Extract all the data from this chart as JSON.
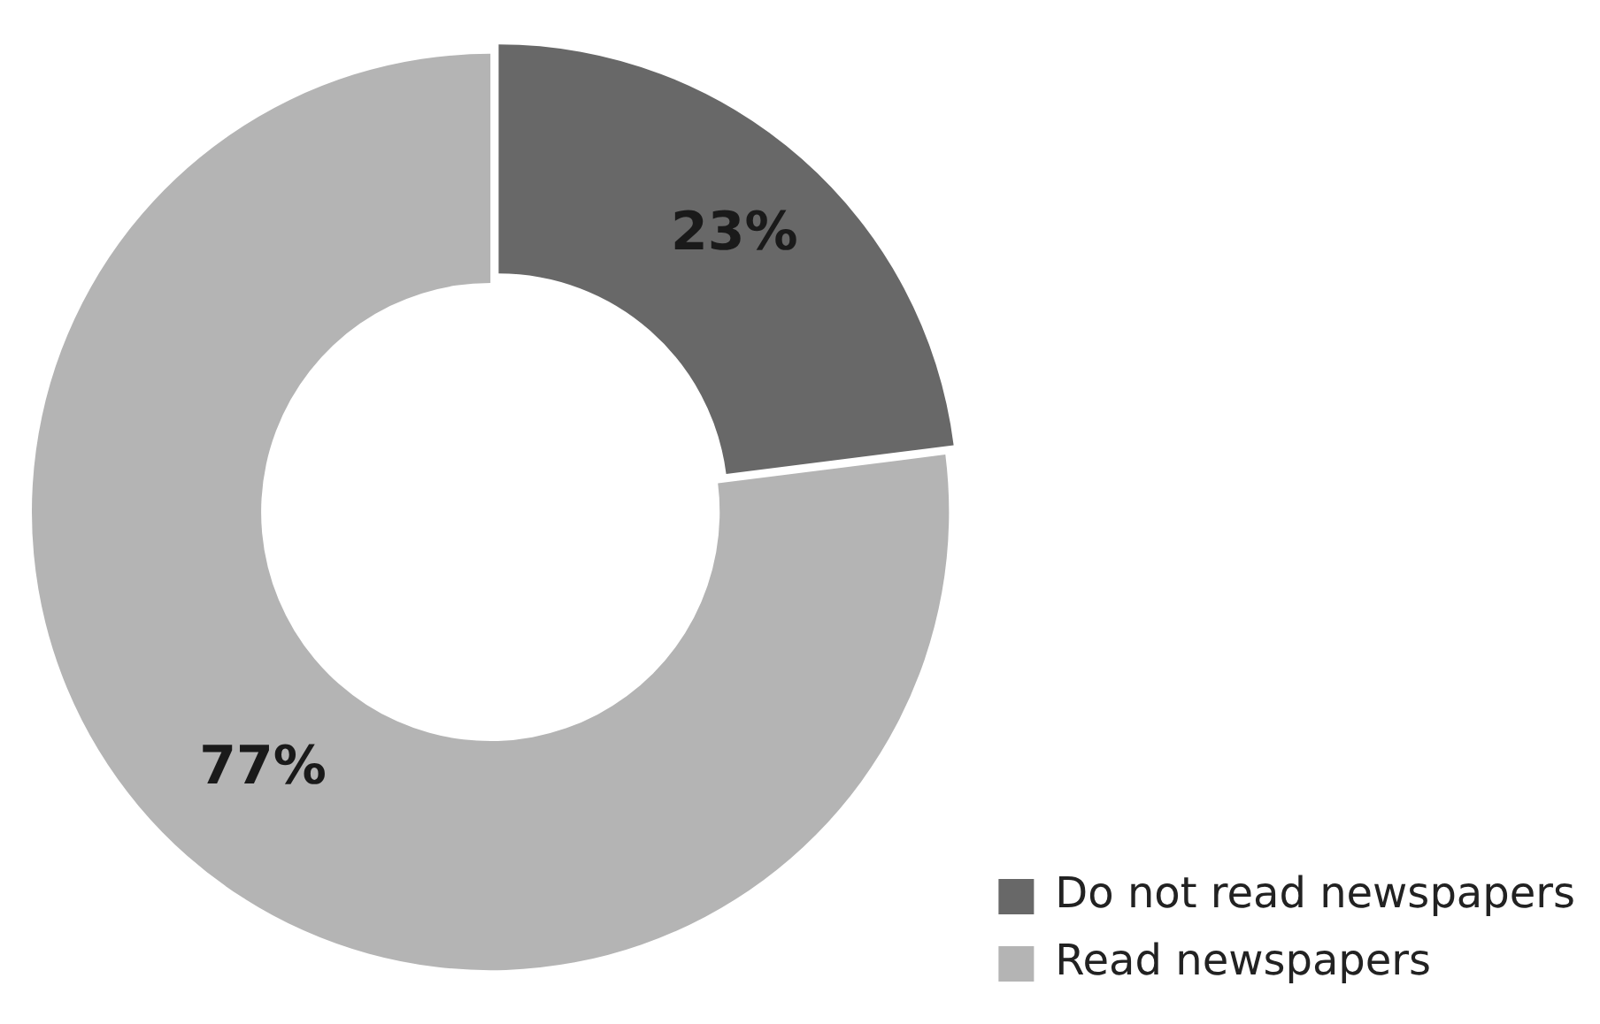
{
  "chart_data": {
    "type": "donut",
    "categories": [
      "Do not read newspapers",
      "Read newspapers"
    ],
    "values": [
      23,
      77
    ],
    "colors": [
      "#686868",
      "#b4b4b4"
    ],
    "value_labels": [
      "23%",
      "77%"
    ],
    "legend": "bottom right"
  }
}
